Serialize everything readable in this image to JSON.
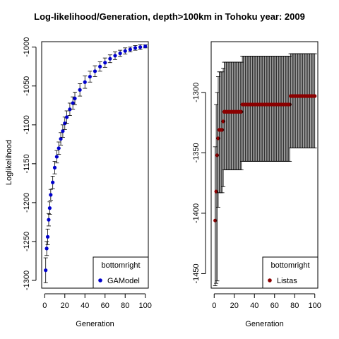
{
  "title": "Log-likelihood/Generation, depth>100km in Tohoku year: 2009",
  "chart_data": [
    {
      "type": "scatter",
      "panel": "left",
      "xlabel": "Generation",
      "ylabel": "Loglikelihood",
      "xlim": [
        -3,
        103
      ],
      "ylim": [
        -1310,
        -993
      ],
      "x_ticks": [
        0,
        20,
        40,
        60,
        80,
        100
      ],
      "x_tick_labels": [
        "0",
        "20",
        "40",
        "60",
        "80",
        "100"
      ],
      "y_ticks": [
        -1300,
        -1250,
        -1200,
        -1150,
        -1100,
        -1050,
        -1000
      ],
      "y_tick_labels": [
        "-1300",
        "-1250",
        "-1200",
        "-1150",
        "-1100",
        "-1050",
        "-1000"
      ],
      "legend": {
        "title": "bottomright",
        "placement": "bottom-right",
        "entries": [
          "GAModel"
        ]
      },
      "series": [
        {
          "name": "GAModel",
          "color": "#0000cc",
          "x": [
            1,
            2,
            3,
            4,
            5,
            6,
            8,
            10,
            12,
            14,
            16,
            18,
            20,
            22,
            25,
            28,
            30,
            35,
            40,
            45,
            50,
            55,
            60,
            65,
            70,
            75,
            80,
            85,
            90,
            95,
            100
          ],
          "y": [
            -1287,
            -1259,
            -1244,
            -1222,
            -1207,
            -1190,
            -1174,
            -1155,
            -1141,
            -1130,
            -1118,
            -1108,
            -1098,
            -1090,
            -1080,
            -1072,
            -1066,
            -1055,
            -1045,
            -1038,
            -1031,
            -1025,
            -1020,
            -1015,
            -1011,
            -1008,
            -1005,
            -1003,
            -1001,
            -1000,
            -999
          ],
          "err": [
            16,
            9,
            10,
            8,
            8,
            7,
            8,
            8,
            8,
            8,
            8,
            8,
            8,
            8,
            8,
            8,
            8,
            8,
            8,
            7,
            7,
            6,
            6,
            5,
            5,
            4,
            4,
            3,
            3,
            3,
            2
          ]
        }
      ]
    },
    {
      "type": "scatter",
      "panel": "right",
      "xlabel": "Generation",
      "ylabel": "",
      "xlim": [
        -3,
        103
      ],
      "ylim": [
        -1462,
        -1258
      ],
      "x_ticks": [
        0,
        20,
        40,
        60,
        80,
        100
      ],
      "x_tick_labels": [
        "0",
        "20",
        "40",
        "60",
        "80",
        "100"
      ],
      "y_ticks": [
        -1450,
        -1400,
        -1350,
        -1300
      ],
      "y_tick_labels": [
        "-1450",
        "-1400",
        "-1350",
        "-1300"
      ],
      "legend": {
        "title": "bottomright",
        "placement": "bottom-right",
        "entries": [
          "Listas"
        ]
      },
      "series": [
        {
          "name": "Listas",
          "color": "#8b0000",
          "segments": [
            {
              "x0": 1,
              "x1": 1,
              "y": -1406,
              "lo": -1460,
              "hi": -1345
            },
            {
              "x0": 2,
              "x1": 2,
              "y": -1382,
              "lo": -1458,
              "hi": -1310
            },
            {
              "x0": 3,
              "x1": 3,
              "y": -1352,
              "lo": -1456,
              "hi": -1300
            },
            {
              "x0": 4,
              "x1": 4,
              "y": -1338,
              "lo": -1395,
              "hi": -1287
            },
            {
              "x0": 5,
              "x1": 7,
              "y": -1331,
              "lo": -1383,
              "hi": -1283
            },
            {
              "x0": 8,
              "x1": 8,
              "y": -1331,
              "lo": -1383,
              "hi": -1283
            },
            {
              "x0": 9,
              "x1": 9,
              "y": -1324,
              "lo": -1378,
              "hi": -1280
            },
            {
              "x0": 10,
              "x1": 27,
              "y": -1316,
              "lo": -1364,
              "hi": -1275
            },
            {
              "x0": 28,
              "x1": 75,
              "y": -1310,
              "lo": -1357,
              "hi": -1270
            },
            {
              "x0": 76,
              "x1": 100,
              "y": -1303,
              "lo": -1346,
              "hi": -1268
            }
          ]
        }
      ]
    }
  ]
}
